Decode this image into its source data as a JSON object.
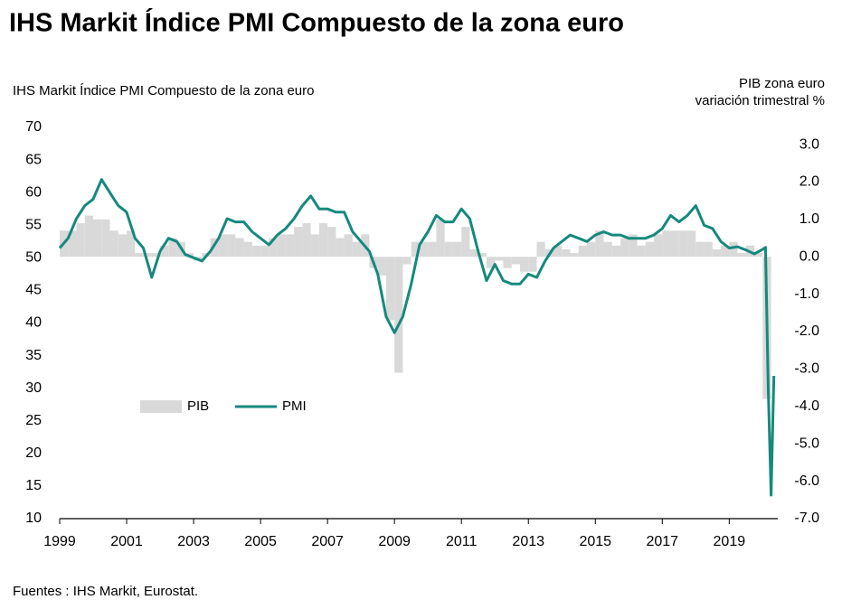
{
  "chart_data": {
    "type": "line",
    "title": "IHS Markit Índice PMI Compuesto de la zona euro",
    "ylabel": "IHS Markit Índice PMI Compuesto de la zona euro",
    "y2label": [
      "PIB zona euro",
      "variación trimestral %"
    ],
    "source": "Fuentes : IHS Markit, Eurostat.",
    "xlim": [
      1999,
      2020.45
    ],
    "xticks": [
      1999,
      2001,
      2003,
      2005,
      2007,
      2009,
      2011,
      2013,
      2015,
      2017,
      2019
    ],
    "ylim": [
      10,
      70
    ],
    "yticks": [
      10,
      15,
      20,
      25,
      30,
      35,
      40,
      45,
      50,
      55,
      60,
      65,
      70
    ],
    "y2lim": [
      -7,
      3.46
    ],
    "y2ticks": [
      {
        "value": 3,
        "label": "3.0"
      },
      {
        "value": 2,
        "label": "2.0"
      },
      {
        "value": 1,
        "label": "1.0"
      },
      {
        "value": 0,
        "label": "0.0"
      },
      {
        "value": -1,
        "label": "-1.0"
      },
      {
        "value": -2,
        "label": "-2.0"
      },
      {
        "value": -3,
        "label": "-3.0"
      },
      {
        "value": -4,
        "label": "-4.0"
      },
      {
        "value": -5,
        "label": "-5.0"
      },
      {
        "value": -6,
        "label": "-6.0"
      },
      {
        "value": -7,
        "label": "-7.0"
      }
    ],
    "series": [
      {
        "name": "PIB",
        "type": "bar",
        "axis": "y2",
        "color": "#d9d9d9",
        "x": [
          1999,
          1999.25,
          1999.5,
          1999.75,
          2000,
          2000.25,
          2000.5,
          2000.75,
          2001,
          2001.25,
          2001.5,
          2001.75,
          2002,
          2002.25,
          2002.5,
          2002.75,
          2003,
          2003.25,
          2003.5,
          2003.75,
          2004,
          2004.25,
          2004.5,
          2004.75,
          2005,
          2005.25,
          2005.5,
          2005.75,
          2006,
          2006.25,
          2006.5,
          2006.75,
          2007,
          2007.25,
          2007.5,
          2007.75,
          2008,
          2008.25,
          2008.5,
          2008.75,
          2009,
          2009.25,
          2009.5,
          2009.75,
          2010,
          2010.25,
          2010.5,
          2010.75,
          2011,
          2011.25,
          2011.5,
          2011.75,
          2012,
          2012.25,
          2012.5,
          2012.75,
          2013,
          2013.25,
          2013.5,
          2013.75,
          2014,
          2014.25,
          2014.5,
          2014.75,
          2015,
          2015.25,
          2015.5,
          2015.75,
          2016,
          2016.25,
          2016.5,
          2016.75,
          2017,
          2017.25,
          2017.5,
          2017.75,
          2018,
          2018.25,
          2018.5,
          2018.75,
          2019,
          2019.25,
          2019.5,
          2019.75,
          2020
        ],
        "values": [
          0.7,
          0.7,
          0.9,
          1.1,
          1.0,
          1.0,
          0.7,
          0.6,
          0.7,
          0.1,
          0.1,
          0.1,
          0.3,
          0.5,
          0.4,
          0.1,
          -0.1,
          0.1,
          0.5,
          0.6,
          0.6,
          0.5,
          0.4,
          0.3,
          0.3,
          0.5,
          0.6,
          0.6,
          0.8,
          0.9,
          0.6,
          0.9,
          0.8,
          0.5,
          0.6,
          0.4,
          0.6,
          -0.3,
          -0.5,
          -1.7,
          -3.1,
          -0.2,
          0.4,
          0.4,
          0.4,
          1.0,
          0.4,
          0.4,
          0.8,
          0.2,
          0.1,
          -0.3,
          -0.1,
          -0.3,
          -0.2,
          -0.4,
          -0.4,
          0.4,
          0.2,
          0.3,
          0.2,
          0.1,
          0.3,
          0.4,
          0.7,
          0.4,
          0.3,
          0.5,
          0.6,
          0.3,
          0.4,
          0.6,
          0.7,
          0.7,
          0.7,
          0.7,
          0.4,
          0.4,
          0.2,
          0.3,
          0.4,
          0.1,
          0.3,
          0.1,
          -3.8
        ]
      },
      {
        "name": "PMI",
        "type": "line",
        "color": "#15897c",
        "x": [
          1999,
          1999.25,
          1999.5,
          1999.75,
          2000,
          2000.25,
          2000.5,
          2000.75,
          2001,
          2001.25,
          2001.5,
          2001.75,
          2002,
          2002.25,
          2002.5,
          2002.75,
          2003,
          2003.25,
          2003.5,
          2003.75,
          2004,
          2004.25,
          2004.5,
          2004.75,
          2005,
          2005.25,
          2005.5,
          2005.75,
          2006,
          2006.25,
          2006.5,
          2006.75,
          2007,
          2007.25,
          2007.5,
          2007.75,
          2008,
          2008.25,
          2008.5,
          2008.75,
          2009,
          2009.25,
          2009.5,
          2009.75,
          2010,
          2010.25,
          2010.5,
          2010.75,
          2011,
          2011.25,
          2011.5,
          2011.75,
          2012,
          2012.25,
          2012.5,
          2012.75,
          2013,
          2013.25,
          2013.5,
          2013.75,
          2014,
          2014.25,
          2014.5,
          2014.75,
          2015,
          2015.25,
          2015.5,
          2015.75,
          2016,
          2016.25,
          2016.5,
          2016.75,
          2017,
          2017.25,
          2017.5,
          2017.75,
          2018,
          2018.25,
          2018.5,
          2018.75,
          2019,
          2019.25,
          2019.5,
          2019.75,
          2020,
          2020.083,
          2020.167,
          2020.25,
          2020.333
        ],
        "values": [
          51.5,
          53,
          56,
          58,
          59,
          62,
          60,
          58,
          57,
          53,
          51.5,
          47,
          51,
          53,
          52.5,
          50.5,
          50,
          49.5,
          51,
          53,
          56,
          55.5,
          55.5,
          54,
          53,
          52,
          53.5,
          54.5,
          56,
          58,
          59.5,
          57.5,
          57.5,
          57,
          57,
          54,
          52.5,
          51,
          47.5,
          41,
          38.5,
          41,
          46,
          52,
          54,
          56.5,
          55.5,
          55.5,
          57.5,
          56,
          51,
          46.5,
          49,
          46.5,
          46,
          46,
          47.5,
          47,
          49.5,
          51.5,
          52.5,
          53.5,
          53,
          52.5,
          53.5,
          54,
          53.5,
          53.5,
          53,
          53,
          53,
          53.5,
          54.5,
          56.5,
          55.5,
          56.5,
          58,
          55,
          54.5,
          52.5,
          51.5,
          51.7,
          51.2,
          50.6,
          51.3,
          51.6,
          29.7,
          13.6,
          31.9
        ]
      }
    ]
  }
}
